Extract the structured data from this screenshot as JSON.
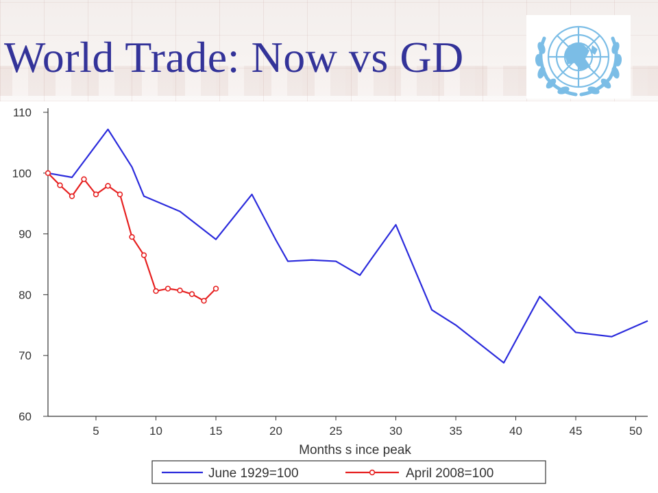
{
  "slide": {
    "title": "World Trade: Now vs GD",
    "emblem": "un-emblem",
    "title_color": "#333399"
  },
  "chart_data": {
    "type": "line",
    "title": "",
    "xlabel": "Months s ince peak",
    "ylabel": "",
    "xlim": [
      1,
      51
    ],
    "ylim": [
      60,
      110
    ],
    "x_ticks": [
      5,
      10,
      15,
      20,
      25,
      30,
      35,
      40,
      45,
      50
    ],
    "y_ticks": [
      60,
      70,
      80,
      90,
      100,
      110
    ],
    "grid": false,
    "legend_position": "bottom",
    "series": [
      {
        "name": "June 1929=100",
        "color": "#2b2bdc",
        "marker": "none",
        "points": [
          [
            1,
            100
          ],
          [
            3,
            99.3
          ],
          [
            6,
            107.2
          ],
          [
            8,
            101
          ],
          [
            9,
            96.2
          ],
          [
            12,
            93.7
          ],
          [
            15,
            89.1
          ],
          [
            18,
            96.5
          ],
          [
            20,
            89
          ],
          [
            21,
            85.5
          ],
          [
            23,
            85.7
          ],
          [
            25,
            85.5
          ],
          [
            27,
            83.2
          ],
          [
            28,
            86
          ],
          [
            30,
            91.5
          ],
          [
            33,
            77.5
          ],
          [
            35,
            75
          ],
          [
            39,
            68.8
          ],
          [
            42,
            79.7
          ],
          [
            45,
            73.8
          ],
          [
            48,
            73.1
          ],
          [
            51,
            75.7
          ]
        ]
      },
      {
        "name": "April 2008=100",
        "color": "#e62020",
        "marker": "circle",
        "points": [
          [
            1,
            100
          ],
          [
            2,
            98
          ],
          [
            3,
            96.2
          ],
          [
            4,
            99
          ],
          [
            5,
            96.5
          ],
          [
            6,
            97.9
          ],
          [
            7,
            96.5
          ],
          [
            8,
            89.5
          ],
          [
            9,
            86.5
          ],
          [
            10,
            80.6
          ],
          [
            11,
            81
          ],
          [
            12,
            80.7
          ],
          [
            13,
            80.1
          ],
          [
            14,
            79
          ],
          [
            15,
            81
          ]
        ]
      }
    ]
  }
}
